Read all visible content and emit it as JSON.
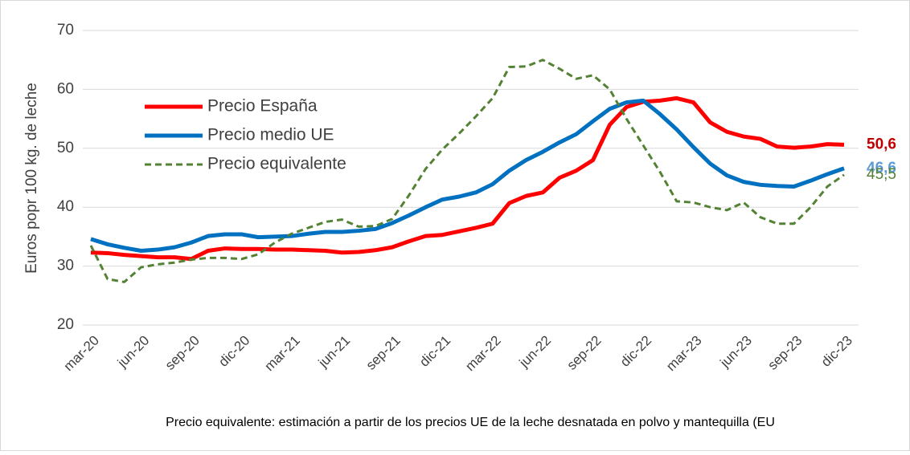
{
  "chart_data": {
    "type": "line",
    "y_label": "Euros popr 100 kg. de leche",
    "note": "Precio equivalente: estimación a partir de los precios UE de la leche desnatada en polvo y mantequilla (EU",
    "categories": [
      "mar-20",
      null,
      null,
      "jun-20",
      null,
      null,
      "sep-20",
      null,
      null,
      "dic-20",
      null,
      null,
      "mar-21",
      null,
      null,
      "jun-21",
      null,
      null,
      "sep-21",
      null,
      null,
      "dic-21",
      null,
      null,
      "mar-22",
      null,
      null,
      "jun-22",
      null,
      null,
      "sep-22",
      null,
      null,
      "dic-22",
      null,
      null,
      "mar-23",
      null,
      null,
      "jun-23",
      null,
      null,
      "sep-23",
      null,
      null,
      "dic-23"
    ],
    "ylim": [
      20,
      70
    ],
    "yticks": [
      20,
      30,
      40,
      50,
      60,
      70
    ],
    "grid": true,
    "legend": "upper left",
    "series": [
      {
        "name": "Precio España",
        "color": "#ff0000",
        "label_color": "#c00000",
        "label_bold": true,
        "dashed": false,
        "values": [
          32.3,
          32.2,
          31.9,
          31.7,
          31.5,
          31.5,
          31.2,
          32.6,
          33.0,
          32.9,
          32.9,
          32.8,
          32.8,
          32.7,
          32.6,
          32.3,
          32.4,
          32.7,
          33.2,
          34.2,
          35.1,
          35.3,
          35.9,
          36.5,
          37.2,
          40.7,
          41.9,
          42.5,
          45.0,
          46.2,
          48.0,
          54.0,
          57.0,
          57.9,
          58.1,
          58.5,
          57.8,
          54.4,
          52.8,
          52.0,
          51.6,
          50.3,
          50.1,
          50.3,
          50.7,
          50.6
        ],
        "value_labels": [
          null,
          null,
          null,
          null,
          null,
          null,
          null,
          null,
          null,
          null,
          null,
          null,
          null,
          null,
          null,
          null,
          null,
          null,
          null,
          null,
          null,
          null,
          null,
          null,
          null,
          null,
          null,
          null,
          null,
          null,
          null,
          null,
          null,
          null,
          null,
          null,
          null,
          null,
          null,
          null,
          null,
          null,
          null,
          null,
          null,
          "50,6"
        ]
      },
      {
        "name": "Precio medio UE",
        "color": "#0070c0",
        "label_color": "#5b9bd5",
        "label_bold": true,
        "dashed": false,
        "values": [
          34.6,
          33.7,
          33.1,
          32.6,
          32.8,
          33.2,
          34.0,
          35.1,
          35.4,
          35.4,
          34.9,
          35.0,
          35.1,
          35.5,
          35.8,
          35.8,
          36.0,
          36.3,
          37.3,
          38.6,
          40.0,
          41.3,
          41.8,
          42.5,
          43.9,
          46.2,
          48.0,
          49.4,
          51.0,
          52.4,
          54.6,
          56.7,
          57.8,
          58.1,
          55.8,
          53.2,
          50.2,
          47.4,
          45.4,
          44.3,
          43.8,
          43.6,
          43.5,
          44.5,
          45.6,
          46.6
        ],
        "value_labels": [
          null,
          null,
          null,
          null,
          null,
          null,
          null,
          null,
          null,
          null,
          null,
          null,
          null,
          null,
          null,
          null,
          null,
          null,
          null,
          null,
          null,
          null,
          null,
          null,
          null,
          null,
          null,
          null,
          null,
          null,
          null,
          null,
          null,
          null,
          null,
          null,
          null,
          null,
          null,
          null,
          null,
          null,
          null,
          null,
          null,
          "46,6"
        ]
      },
      {
        "name": "Precio equivalente",
        "color": "#548235",
        "label_color": "#548235",
        "label_bold": false,
        "dashed": true,
        "values": [
          33.5,
          27.8,
          27.3,
          29.8,
          30.3,
          30.6,
          31.1,
          31.4,
          31.4,
          31.2,
          32.0,
          34.0,
          35.5,
          36.5,
          37.5,
          37.9,
          36.7,
          36.8,
          38.0,
          42.0,
          46.5,
          49.8,
          52.5,
          55.4,
          58.5,
          63.8,
          63.9,
          65.0,
          63.5,
          61.8,
          62.4,
          60.0,
          55.0,
          50.5,
          46.0,
          41.0,
          40.8,
          40.0,
          39.5,
          40.8,
          38.3,
          37.2,
          37.2,
          40.0,
          43.5,
          45.5
        ],
        "value_labels": [
          null,
          null,
          null,
          null,
          null,
          null,
          null,
          null,
          null,
          null,
          null,
          null,
          null,
          null,
          null,
          null,
          null,
          null,
          null,
          null,
          null,
          null,
          null,
          null,
          null,
          null,
          null,
          null,
          null,
          null,
          null,
          null,
          null,
          null,
          null,
          null,
          null,
          null,
          null,
          null,
          null,
          null,
          null,
          null,
          null,
          "45,5"
        ]
      }
    ]
  }
}
